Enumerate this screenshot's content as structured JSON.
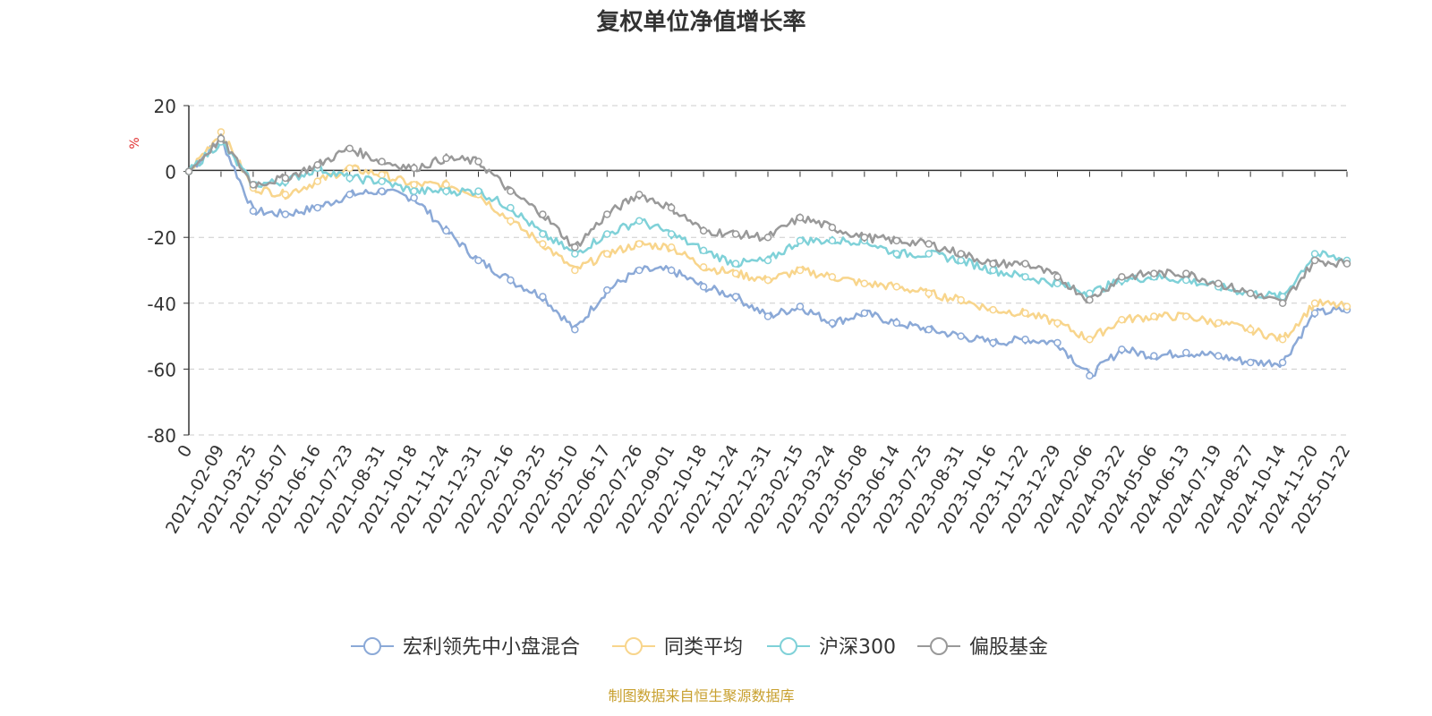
{
  "chart_data": {
    "type": "line",
    "title": "复权单位净值增长率",
    "ylabel": "%",
    "xlabel": "",
    "ylim": [
      -80,
      20
    ],
    "yticks": [
      20,
      0,
      -20,
      -40,
      -60,
      -80
    ],
    "ytick_labels": [
      "20",
      "0",
      "-20",
      "-40",
      "-60",
      "-80"
    ],
    "grid": true,
    "legend_position": "bottom-center",
    "categories": [
      "0",
      "2021-02-09",
      "2021-03-25",
      "2021-05-07",
      "2021-06-16",
      "2021-07-23",
      "2021-08-31",
      "2021-10-18",
      "2021-11-24",
      "2021-12-31",
      "2022-02-16",
      "2022-03-25",
      "2022-05-10",
      "2022-06-17",
      "2022-07-26",
      "2022-09-01",
      "2022-10-18",
      "2022-11-24",
      "2022-12-31",
      "2023-02-15",
      "2023-03-24",
      "2023-05-08",
      "2023-06-14",
      "2023-07-25",
      "2023-08-31",
      "2023-10-16",
      "2023-11-22",
      "2023-12-29",
      "2024-02-06",
      "2024-03-22",
      "2024-05-06",
      "2024-06-13",
      "2024-07-19",
      "2024-08-27",
      "2024-10-14",
      "2024-11-20",
      "2025-01-22"
    ],
    "series": [
      {
        "name": "宏利领先中小盘混合",
        "color": "#8ba9d7",
        "values": [
          0,
          10,
          -12,
          -13,
          -11,
          -7,
          -6,
          -8,
          -18,
          -27,
          -33,
          -38,
          -48,
          -36,
          -30,
          -30,
          -35,
          -38,
          -44,
          -41,
          -46,
          -43,
          -46,
          -48,
          -50,
          -52,
          -51,
          -52,
          -62,
          -54,
          -56,
          -55,
          -56,
          -58,
          -58,
          -43,
          -42
        ]
      },
      {
        "name": "同类平均",
        "color": "#f8d58c",
        "values": [
          0,
          12,
          -5,
          -7,
          -3,
          1,
          -1,
          -4,
          -4,
          -7,
          -15,
          -22,
          -30,
          -25,
          -22,
          -23,
          -29,
          -31,
          -33,
          -30,
          -32,
          -34,
          -35,
          -37,
          -39,
          -42,
          -43,
          -46,
          -51,
          -45,
          -44,
          -44,
          -46,
          -48,
          -51,
          -40,
          -41
        ]
      },
      {
        "name": "沪深300",
        "color": "#7fd1d8",
        "values": [
          0,
          9,
          -4,
          -3,
          1,
          -2,
          -3,
          -6,
          -6,
          -6,
          -11,
          -19,
          -25,
          -19,
          -15,
          -19,
          -24,
          -28,
          -27,
          -21,
          -21,
          -21,
          -25,
          -25,
          -27,
          -30,
          -32,
          -34,
          -37,
          -33,
          -32,
          -33,
          -35,
          -37,
          -38,
          -25,
          -27
        ]
      },
      {
        "name": "偏股基金",
        "color": "#999999",
        "values": [
          0,
          10,
          -4,
          -2,
          2,
          7,
          3,
          1,
          4,
          3,
          -6,
          -13,
          -23,
          -13,
          -7,
          -11,
          -18,
          -19,
          -20,
          -14,
          -17,
          -20,
          -21,
          -22,
          -25,
          -28,
          -28,
          -32,
          -39,
          -32,
          -31,
          -31,
          -34,
          -37,
          -40,
          -27,
          -28
        ]
      }
    ]
  },
  "source_note": "制图数据来自恒生聚源数据库"
}
